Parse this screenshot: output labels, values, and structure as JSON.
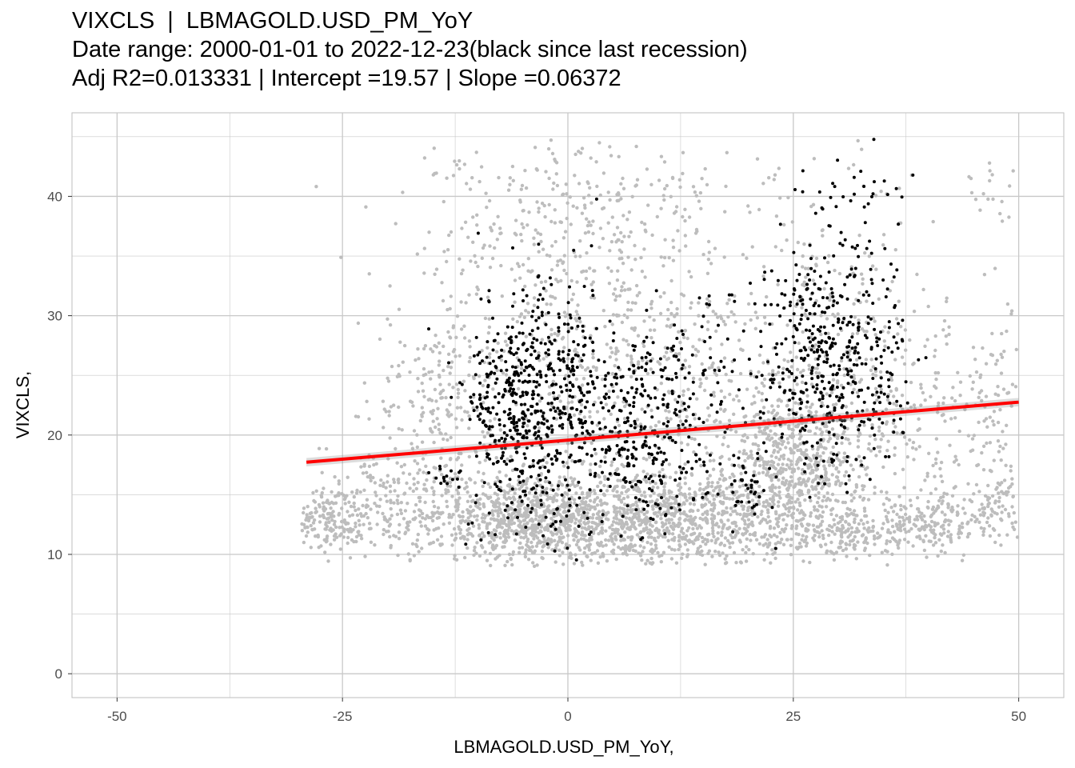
{
  "title": "VIXCLS  |  LBMAGOLD.USD_PM_YoY",
  "subtitle1": "Date range: 2000-01-01 to 2022-12-23(black since last recession)",
  "subtitle2": "Adj R2=0.013331 | Intercept =19.57 | Slope =0.06372",
  "chart_data": {
    "type": "scatter",
    "title": "VIXCLS  |  LBMAGOLD.USD_PM_YoY",
    "xlabel": "LBMAGOLD.USD_PM_YoY,",
    "ylabel": "VIXCLS,",
    "xlim": [
      -55,
      55
    ],
    "ylim": [
      -2,
      47
    ],
    "x_ticks": [
      -50,
      -25,
      0,
      25,
      50
    ],
    "x_tick_labels": [
      "-50",
      "-25",
      "0",
      "25",
      "50"
    ],
    "y_ticks": [
      0,
      10,
      20,
      30,
      40
    ],
    "y_tick_labels": [
      "0",
      "10",
      "20",
      "30",
      "40"
    ],
    "grid": true,
    "fit_line": {
      "intercept": 19.57,
      "slope": 0.06372,
      "x_range": [
        -29,
        50
      ],
      "color": "#ff0000"
    },
    "colors": {
      "before_recession": "#bdbdbd",
      "since_recession": "#000000",
      "fit": "#ff0000"
    },
    "series": [
      {
        "color": "#bdbdbd",
        "clusters": [
          {
            "cx": -27,
            "cy": 13,
            "sx": 2,
            "sy": 1.2,
            "n": 160
          },
          {
            "cx": -20,
            "cy": 14,
            "sx": 4,
            "sy": 2.5,
            "n": 180
          },
          {
            "cx": -15,
            "cy": 22,
            "sx": 3,
            "sy": 4,
            "n": 150
          },
          {
            "cx": -5,
            "cy": 13,
            "sx": 6,
            "sy": 2,
            "n": 750
          },
          {
            "cx": 7,
            "cy": 13,
            "sx": 7,
            "sy": 2,
            "n": 850
          },
          {
            "cx": 18,
            "cy": 13,
            "sx": 5,
            "sy": 2.2,
            "n": 300
          },
          {
            "cx": 25,
            "cy": 18,
            "sx": 4,
            "sy": 3,
            "n": 550
          },
          {
            "cx": 30,
            "cy": 12,
            "sx": 5,
            "sy": 1.2,
            "n": 250
          },
          {
            "cx": 42,
            "cy": 12.5,
            "sx": 4,
            "sy": 1.2,
            "n": 180
          },
          {
            "cx": 38,
            "cy": 21,
            "sx": 6,
            "sy": 4,
            "n": 220
          },
          {
            "cx": 48,
            "cy": 15,
            "sx": 1.5,
            "sy": 1,
            "n": 50
          },
          {
            "cx": 48,
            "cy": 23,
            "sx": 2,
            "sy": 5,
            "n": 60
          },
          {
            "cx": 5,
            "cy": 26,
            "sx": 12,
            "sy": 5,
            "n": 600
          },
          {
            "cx": 2,
            "cy": 38,
            "sx": 10,
            "sy": 4,
            "n": 350
          },
          {
            "cx": 30,
            "cy": 30,
            "sx": 6,
            "sy": 7,
            "n": 200
          },
          {
            "cx": 48,
            "cy": 40,
            "sx": 2,
            "sy": 2,
            "n": 25
          }
        ]
      },
      {
        "color": "#000000",
        "clusters": [
          {
            "cx": -5,
            "cy": 22,
            "sx": 3,
            "sy": 5,
            "n": 500
          },
          {
            "cx": 1,
            "cy": 22,
            "sx": 2,
            "sy": 5,
            "n": 160
          },
          {
            "cx": 8,
            "cy": 20,
            "sx": 3,
            "sy": 4,
            "n": 250
          },
          {
            "cx": 14,
            "cy": 22,
            "sx": 3,
            "sy": 5,
            "n": 100
          },
          {
            "cx": 20,
            "cy": 15,
            "sx": 0.8,
            "sy": 1.2,
            "n": 30
          },
          {
            "cx": 27,
            "cy": 26,
            "sx": 3,
            "sy": 5,
            "n": 350
          },
          {
            "cx": 33,
            "cy": 30,
            "sx": 2,
            "sy": 6,
            "n": 100
          },
          {
            "cx": 31,
            "cy": 41,
            "sx": 3,
            "sy": 1.2,
            "n": 20
          },
          {
            "cx": 36,
            "cy": 25,
            "sx": 2,
            "sy": 3,
            "n": 40
          },
          {
            "cx": -14,
            "cy": 16.5,
            "sx": 1.2,
            "sy": 0.5,
            "n": 15
          }
        ]
      }
    ]
  }
}
